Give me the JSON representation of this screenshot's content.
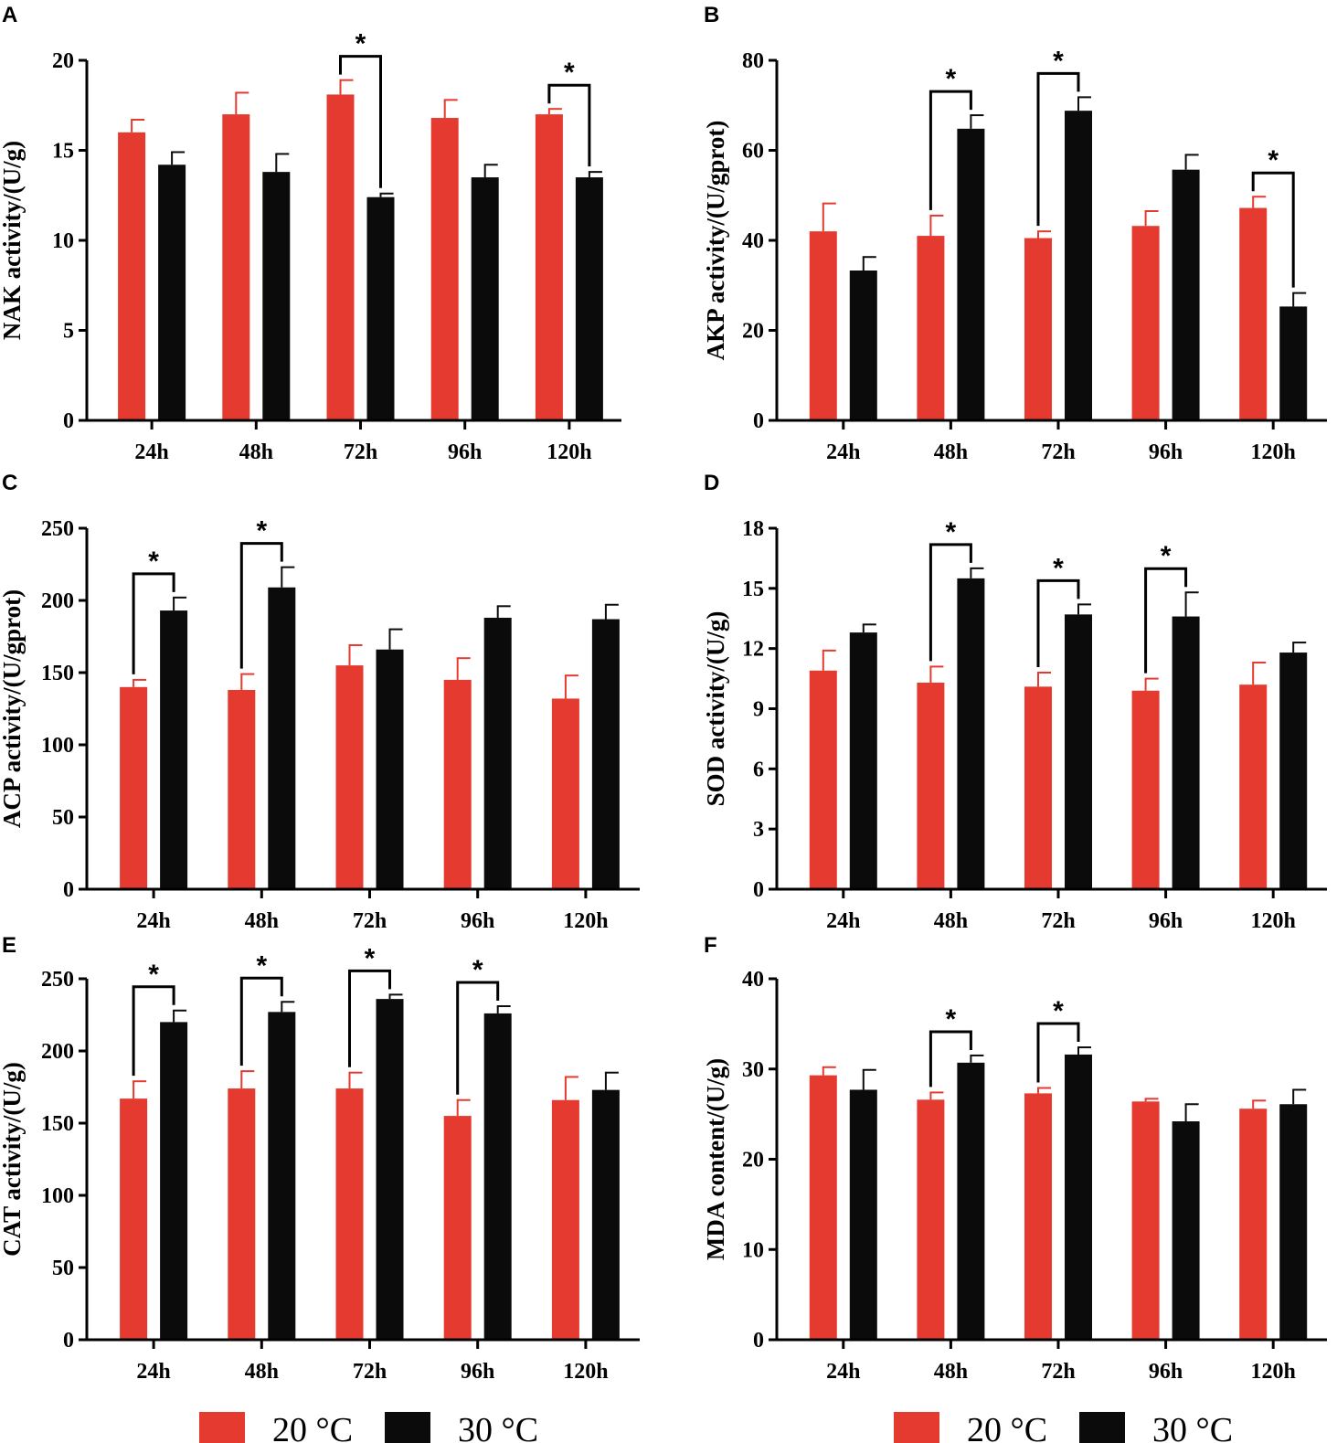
{
  "chart_data": [
    {
      "panel": "A",
      "type": "bar",
      "categories": [
        "24h",
        "48h",
        "72h",
        "96h",
        "120h"
      ],
      "ylabel": "NAK activity/(U/g)",
      "ylim": [
        0,
        20
      ],
      "yticks": [
        0,
        5,
        10,
        15,
        20
      ],
      "series": [
        {
          "name": "20 °C",
          "values": [
            16.0,
            17.0,
            18.1,
            16.8,
            17.0
          ],
          "errors": [
            0.7,
            1.2,
            0.8,
            1.0,
            0.3
          ]
        },
        {
          "name": "30 °C",
          "values": [
            14.2,
            13.8,
            12.4,
            13.5,
            13.5
          ],
          "errors": [
            0.7,
            1.0,
            0.2,
            0.7,
            0.3
          ]
        }
      ],
      "significance": [
        {
          "index": 2,
          "label": "*"
        },
        {
          "index": 4,
          "label": "*"
        }
      ]
    },
    {
      "panel": "B",
      "type": "bar",
      "categories": [
        "24h",
        "48h",
        "72h",
        "96h",
        "120h"
      ],
      "ylabel": "AKP activity/(U/gprot)",
      "ylim": [
        0,
        80
      ],
      "yticks": [
        0,
        20,
        40,
        60,
        80
      ],
      "series": [
        {
          "name": "20 °C",
          "values": [
            42.0,
            41.0,
            40.5,
            43.2,
            47.2
          ],
          "errors": [
            6.2,
            4.5,
            1.5,
            3.3,
            2.5
          ]
        },
        {
          "name": "30 °C",
          "values": [
            33.3,
            64.8,
            68.8,
            55.7,
            25.3
          ],
          "errors": [
            3.0,
            3.0,
            3.0,
            3.3,
            3.0
          ]
        }
      ],
      "significance": [
        {
          "index": 1,
          "label": "*"
        },
        {
          "index": 2,
          "label": "*"
        },
        {
          "index": 4,
          "label": "*"
        }
      ]
    },
    {
      "panel": "C",
      "type": "bar",
      "categories": [
        "24h",
        "48h",
        "72h",
        "96h",
        "120h"
      ],
      "ylabel": "ACP activity/(U/gprot)",
      "ylim": [
        0,
        250
      ],
      "yticks": [
        0,
        50,
        100,
        150,
        200,
        250
      ],
      "series": [
        {
          "name": "20 °C",
          "values": [
            140,
            138,
            155,
            145,
            132
          ],
          "errors": [
            5,
            11,
            14,
            15,
            16
          ]
        },
        {
          "name": "30 °C",
          "values": [
            193,
            209,
            166,
            188,
            187
          ],
          "errors": [
            9,
            14,
            14,
            8,
            10
          ]
        }
      ],
      "significance": [
        {
          "index": 0,
          "label": "*"
        },
        {
          "index": 1,
          "label": "*"
        }
      ]
    },
    {
      "panel": "D",
      "type": "bar",
      "categories": [
        "24h",
        "48h",
        "72h",
        "96h",
        "120h"
      ],
      "ylabel": "SOD activity/(U/g)",
      "ylim": [
        0,
        18
      ],
      "yticks": [
        0,
        3,
        6,
        9,
        12,
        15,
        18
      ],
      "series": [
        {
          "name": "20 °C",
          "values": [
            10.9,
            10.3,
            10.1,
            9.9,
            10.2
          ],
          "errors": [
            1.0,
            0.8,
            0.7,
            0.6,
            1.1
          ]
        },
        {
          "name": "30 °C",
          "values": [
            12.8,
            15.5,
            13.7,
            13.6,
            11.8
          ],
          "errors": [
            0.4,
            0.5,
            0.5,
            1.2,
            0.5
          ]
        }
      ],
      "significance": [
        {
          "index": 1,
          "label": "*"
        },
        {
          "index": 2,
          "label": "*"
        },
        {
          "index": 3,
          "label": "*"
        }
      ]
    },
    {
      "panel": "E",
      "type": "bar",
      "categories": [
        "24h",
        "48h",
        "72h",
        "96h",
        "120h"
      ],
      "ylabel": "CAT activity/(U/g)",
      "ylim": [
        0,
        250
      ],
      "yticks": [
        0,
        50,
        100,
        150,
        200,
        250
      ],
      "series": [
        {
          "name": "20 °C",
          "values": [
            167,
            174,
            174,
            155,
            166
          ],
          "errors": [
            12,
            12,
            11,
            11,
            16
          ]
        },
        {
          "name": "30 °C",
          "values": [
            220,
            227,
            236,
            226,
            173
          ],
          "errors": [
            8,
            7,
            3,
            5,
            12
          ]
        }
      ],
      "significance": [
        {
          "index": 0,
          "label": "*"
        },
        {
          "index": 1,
          "label": "*"
        },
        {
          "index": 2,
          "label": "*"
        },
        {
          "index": 3,
          "label": "*"
        }
      ]
    },
    {
      "panel": "F",
      "type": "bar",
      "categories": [
        "24h",
        "48h",
        "72h",
        "96h",
        "120h"
      ],
      "ylabel": "MDA content/(U/g)",
      "ylim": [
        0,
        40
      ],
      "yticks": [
        0,
        10,
        20,
        30,
        40
      ],
      "series": [
        {
          "name": "20 °C",
          "values": [
            29.3,
            26.6,
            27.3,
            26.4,
            25.6
          ],
          "errors": [
            0.9,
            0.8,
            0.6,
            0.3,
            0.9
          ]
        },
        {
          "name": "30 °C",
          "values": [
            27.7,
            30.7,
            31.6,
            24.2,
            26.1
          ],
          "errors": [
            2.2,
            0.8,
            0.8,
            1.9,
            1.6
          ]
        }
      ],
      "significance": [
        {
          "index": 1,
          "label": "*"
        },
        {
          "index": 2,
          "label": "*"
        }
      ]
    }
  ],
  "legends": [
    {
      "items": [
        {
          "name": "20 °C",
          "color": "#e53a2f"
        },
        {
          "name": "30 °C",
          "color": "#0b0b0b"
        }
      ]
    },
    {
      "items": [
        {
          "name": "20 °C",
          "color": "#e53a2f"
        },
        {
          "name": "30 °C",
          "color": "#0b0b0b"
        }
      ]
    }
  ],
  "colors": {
    "series_1": "#e53a2f",
    "series_2": "#0b0b0b",
    "axis": "#000000"
  }
}
